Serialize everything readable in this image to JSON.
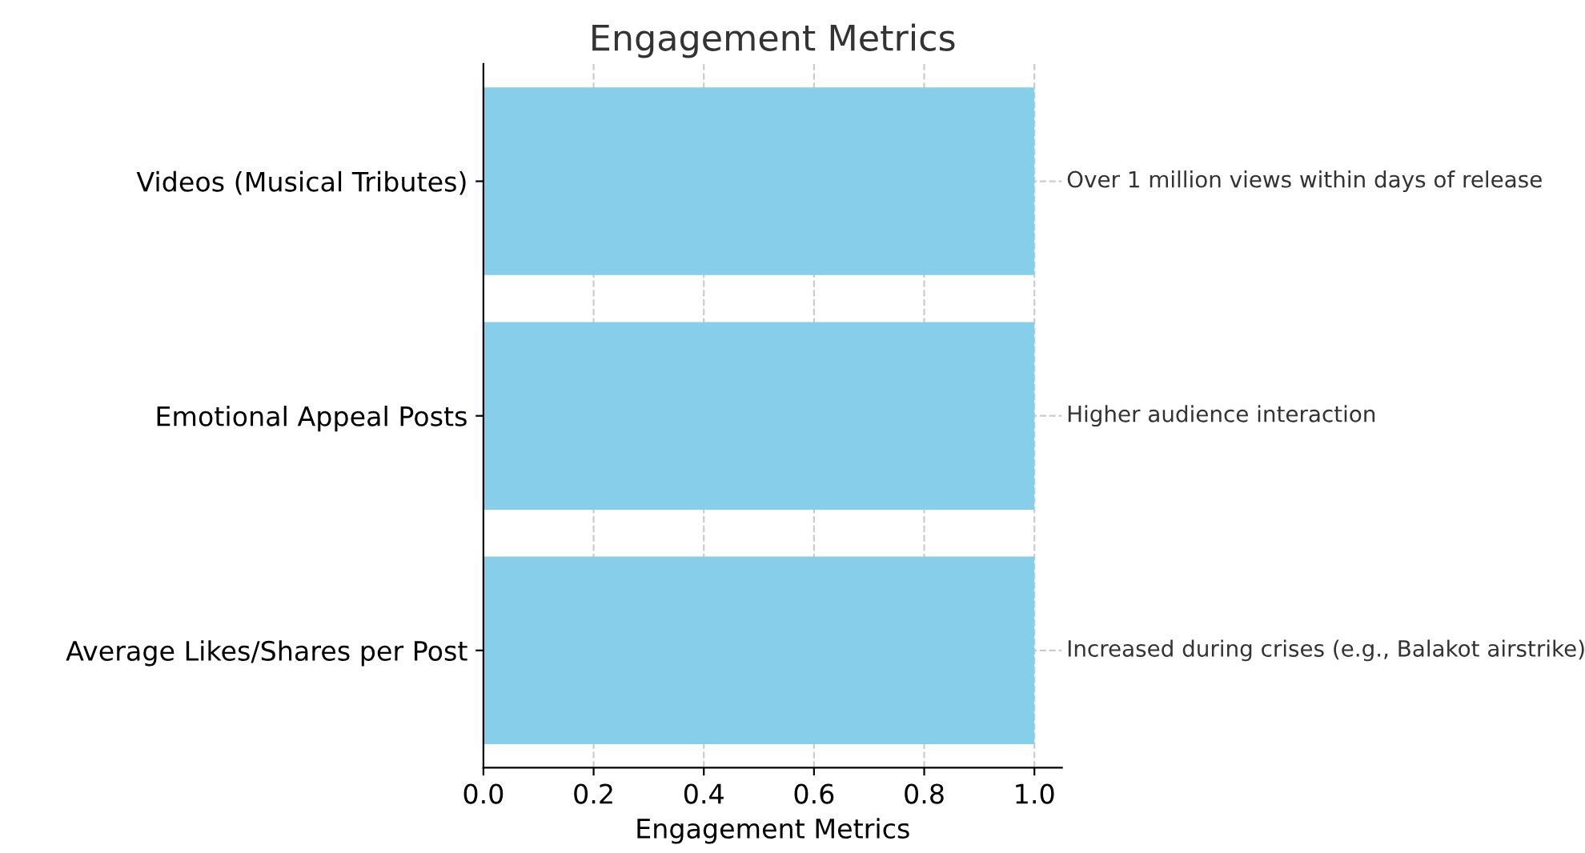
{
  "chart_data": {
    "type": "bar",
    "orientation": "horizontal",
    "title": "Engagement Metrics",
    "xlabel": "Engagement Metrics",
    "categories": [
      "Videos (Musical Tributes)",
      "Emotional Appeal Posts",
      "Average Likes/Shares per Post"
    ],
    "values": [
      1,
      1,
      1
    ],
    "color": "#87ceeb",
    "xlim": [
      0,
      1.05
    ],
    "xticks": [
      {
        "value": 0,
        "label": "0.0"
      },
      {
        "value": 0.2,
        "label": "0.2"
      },
      {
        "value": 0.4,
        "label": "0.4"
      },
      {
        "value": 0.6,
        "label": "0.6"
      },
      {
        "value": 0.8,
        "label": "0.8"
      },
      {
        "value": 1,
        "label": "1.0"
      }
    ],
    "grid": true,
    "annotations": [
      "Over 1 million views within days of release",
      "Higher audience interaction",
      "Increased during crises (e.g., Balakot airstrike)"
    ]
  }
}
